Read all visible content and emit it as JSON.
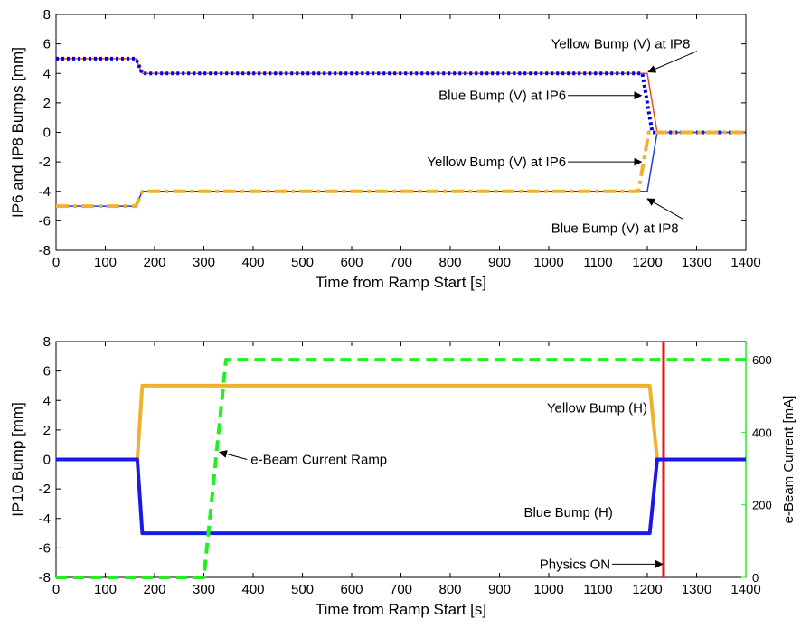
{
  "chart_data": [
    {
      "type": "line",
      "xlabel": "Time from Ramp Start [s]",
      "ylabel": "IP6 and IP8 Bumps [mm]",
      "xlim": [
        0,
        1400
      ],
      "ylim": [
        -8,
        8
      ],
      "xticks": [
        0,
        100,
        200,
        300,
        400,
        500,
        600,
        700,
        800,
        900,
        1000,
        1100,
        1200,
        1300,
        1400
      ],
      "yticks": [
        -8,
        -6,
        -4,
        -2,
        0,
        2,
        4,
        6,
        8
      ],
      "grid": false,
      "colors": {
        "blue": "#0000ee",
        "yellow": "#f0b030",
        "orange": "#d95319",
        "darkblue": "#1f3bd6"
      },
      "series": [
        {
          "style": "solid",
          "color": "#d95319",
          "x": [
            0,
            162,
            175,
            1200,
            1220,
            1400
          ],
          "values": [
            5,
            5,
            4,
            4,
            0,
            0
          ]
        },
        {
          "style": "dotted",
          "color": "#0000ee",
          "x": [
            0,
            162,
            175,
            1190,
            1210,
            1220,
            1400
          ],
          "values": [
            5,
            5,
            4,
            4,
            0,
            0,
            0
          ]
        },
        {
          "style": "solid",
          "color": "#1f3bd6",
          "x": [
            0,
            162,
            175,
            1200,
            1220,
            1400
          ],
          "values": [
            -5,
            -5,
            -4,
            -4,
            0,
            0
          ]
        },
        {
          "style": "dashdot",
          "color": "#f0b030",
          "x": [
            0,
            162,
            175,
            1182,
            1203,
            1220,
            1400
          ],
          "values": [
            -5,
            -5,
            -4,
            -4,
            0,
            0,
            0
          ]
        }
      ],
      "annotations": [
        {
          "text": "Yellow Bump (V) at IP8",
          "x": 1005,
          "y": 6.0,
          "ax": 1202,
          "ay": 4.1,
          "anchor": "start"
        },
        {
          "text": "Blue Bump (V) at IP6",
          "x": 1035,
          "y": 2.5,
          "ax": 1188,
          "ay": 2.5,
          "anchor": "end"
        },
        {
          "text": "Yellow Bump (V) at IP6",
          "x": 1035,
          "y": -2.0,
          "ax": 1188,
          "ay": -2.0,
          "anchor": "end"
        },
        {
          "text": "Blue Bump (V) at IP8",
          "x": 1005,
          "y": -6.5,
          "ax": 1200,
          "ay": -4.5,
          "anchor": "start"
        }
      ]
    },
    {
      "type": "line",
      "xlabel": "Time from Ramp Start [s]",
      "ylabel": "IP10 Bump  [mm]",
      "ylabel_right": "e-Beam Current [mA]",
      "xlim": [
        0,
        1400
      ],
      "ylim": [
        -8,
        8
      ],
      "ylim_right": [
        0,
        650
      ],
      "xticks": [
        0,
        100,
        200,
        300,
        400,
        500,
        600,
        700,
        800,
        900,
        1000,
        1100,
        1200,
        1300,
        1400
      ],
      "yticks": [
        -8,
        -6,
        -4,
        -2,
        0,
        2,
        4,
        6,
        8
      ],
      "yticks_right": [
        0,
        200,
        400,
        600
      ],
      "grid": false,
      "colors": {
        "blue": "#1a1ae6",
        "yellow": "#edb12e",
        "green": "#22ee22",
        "red": "#ee1111"
      },
      "series": [
        {
          "style": "solid",
          "color": "#edb12e",
          "x": [
            0,
            165,
            175,
            1205,
            1220,
            1400
          ],
          "values": [
            0,
            0,
            5,
            5,
            0,
            0
          ]
        },
        {
          "style": "solid",
          "color": "#1a1ae6",
          "x": [
            0,
            165,
            175,
            1205,
            1220,
            1400
          ],
          "values": [
            0,
            0,
            -5,
            -5,
            0,
            0
          ]
        },
        {
          "style": "dashed",
          "color": "#22ee22",
          "axis": "right",
          "x": [
            0,
            300,
            345,
            1400
          ],
          "values": [
            0,
            0,
            600,
            600
          ]
        }
      ],
      "vline": {
        "x": 1233,
        "color": "#ee1111"
      },
      "labels": [
        {
          "text": "Yellow Bump (H)",
          "x": 1200,
          "y": 3.2,
          "anchor": "end"
        },
        {
          "text": "Blue Bump (H)",
          "x": 1130,
          "y": -3.9,
          "anchor": "end"
        }
      ],
      "annotations": [
        {
          "text": "e-Beam Current Ramp",
          "x": 395,
          "y": 0.0,
          "ax": 332,
          "ay": 0.5,
          "anchor": "start"
        },
        {
          "text": "Physics ON",
          "x": 1125,
          "y": -7.1,
          "ax": 1231,
          "ay": -7.1,
          "anchor": "end"
        }
      ]
    }
  ]
}
